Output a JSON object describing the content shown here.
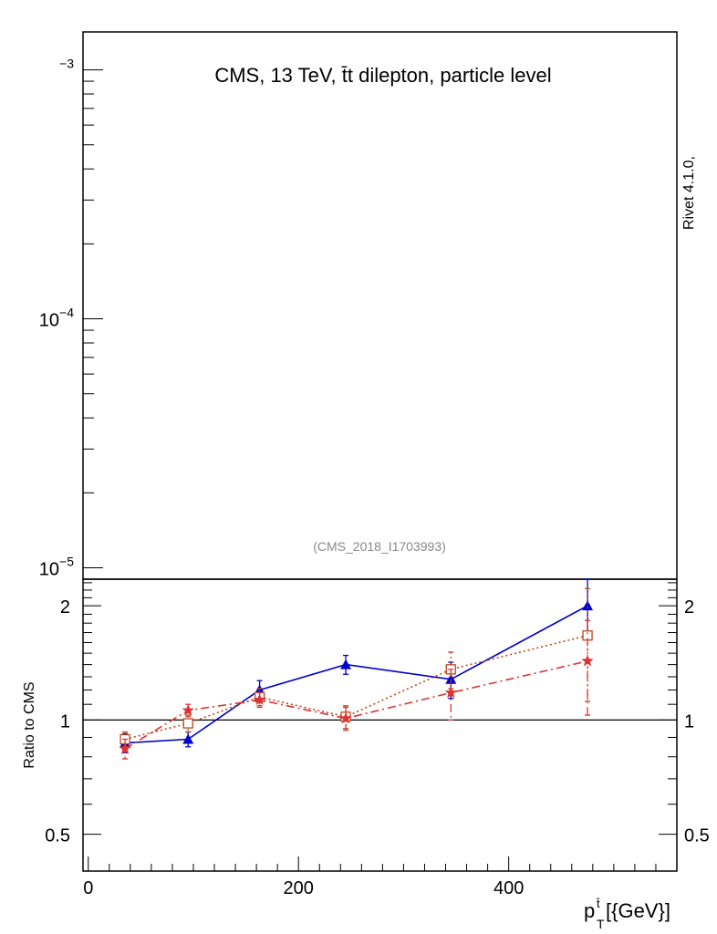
{
  "header": {
    "title": "CMS, 13 TeV, t̄t dilepton, particle level",
    "side_label": "Rivet 4.1.0,",
    "analysis_id": "(CMS_2018_I1703993)"
  },
  "chart_data": [
    {
      "type": "line",
      "panel": "main",
      "yscale": "log",
      "ylim": [
        9e-06,
        0.00142
      ],
      "yticks": [
        {
          "value": 0.001,
          "base": "",
          "exp": "−3"
        },
        {
          "value": 0.0001,
          "base": "10",
          "exp": "−4"
        },
        {
          "value": 1e-05,
          "base": "10",
          "exp": "−5"
        }
      ],
      "series": []
    },
    {
      "type": "line",
      "panel": "ratio",
      "xlabel_main": "p",
      "xlabel_sub": "T",
      "xlabel_sup": "t̄",
      "xlabel_unit": "[{GeV}]",
      "ylabel": "Ratio to CMS",
      "xlim": [
        -5,
        560
      ],
      "yscale": "log",
      "ylim": [
        0.4,
        2.35
      ],
      "xticks": [
        0,
        200,
        400
      ],
      "yticks": [
        0.5,
        1,
        2
      ],
      "reference": 1,
      "series": [
        {
          "color": "#0000cc",
          "marker": "triangle",
          "dash": "solid",
          "x": [
            35,
            95,
            163,
            245,
            345,
            475
          ],
          "y": [
            0.87,
            0.89,
            1.2,
            1.4,
            1.28,
            2.0
          ],
          "err": [
            0.05,
            0.04,
            0.07,
            0.08,
            0.14,
            0.35
          ]
        },
        {
          "color": "#b84a1b",
          "marker": "square",
          "dash": "dotted",
          "x": [
            35,
            95,
            163,
            245,
            345,
            475
          ],
          "y": [
            0.89,
            0.98,
            1.15,
            1.02,
            1.36,
            1.67
          ],
          "err": [
            0.04,
            0.05,
            0.06,
            0.07,
            0.15,
            0.55
          ]
        },
        {
          "color": "#dd3333",
          "marker": "star",
          "dash": "dashdot",
          "x": [
            35,
            95,
            163,
            245,
            345,
            475
          ],
          "y": [
            0.84,
            1.06,
            1.13,
            1.01,
            1.18,
            1.43
          ],
          "err": [
            0.05,
            0.04,
            0.05,
            0.07,
            0.18,
            0.4
          ]
        }
      ]
    }
  ]
}
